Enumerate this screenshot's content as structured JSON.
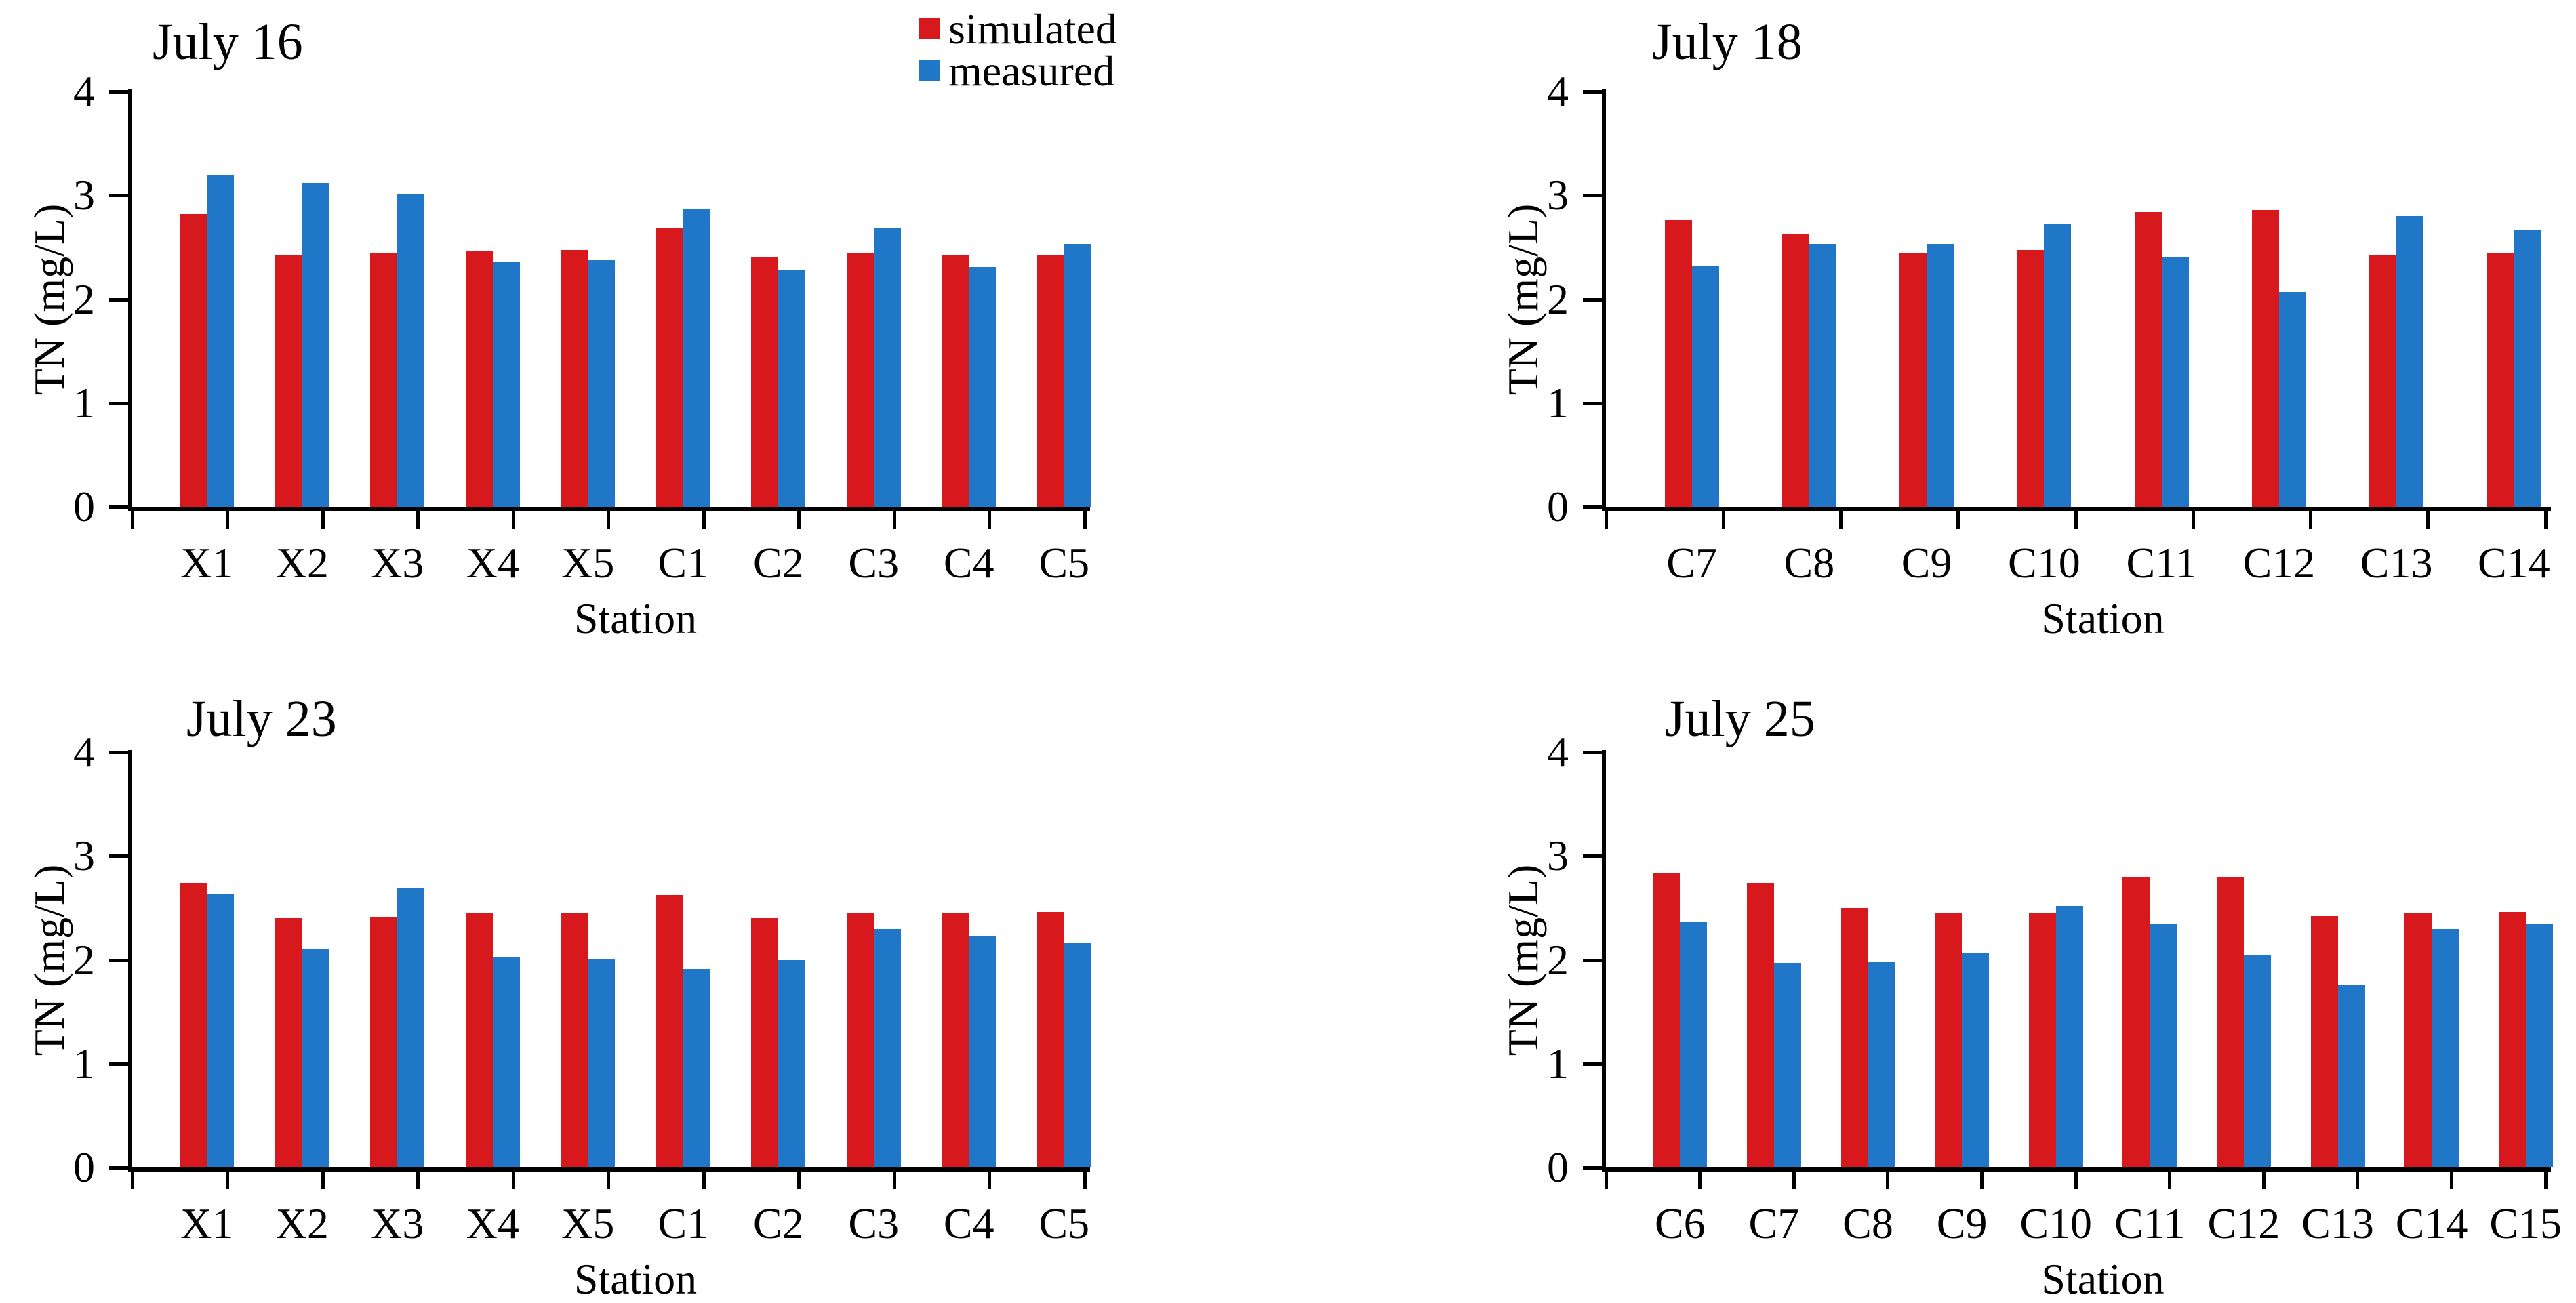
{
  "figure": {
    "y_axis_label": "TN (mg/L)",
    "x_axis_label": "Station",
    "y_ticks": [
      "0",
      "1",
      "2",
      "3",
      "4"
    ]
  },
  "legend": {
    "position": "top-center",
    "entries": [
      {
        "label": "simulated",
        "color": "#d7181d"
      },
      {
        "label": "measured",
        "color": "#2076c7"
      }
    ]
  },
  "chart_data": [
    {
      "type": "bar",
      "title": "July 16",
      "xlabel": "Station",
      "ylabel": "TN (mg/L)",
      "ylim": [
        0,
        4
      ],
      "grid": false,
      "categories": [
        "X1",
        "X2",
        "X3",
        "X4",
        "X5",
        "C1",
        "C2",
        "C3",
        "C4",
        "C5"
      ],
      "series": [
        {
          "name": "simulated",
          "values": [
            2.82,
            2.42,
            2.44,
            2.46,
            2.47,
            2.68,
            2.41,
            2.44,
            2.43,
            2.43
          ]
        },
        {
          "name": "measured",
          "values": [
            3.19,
            3.12,
            3.01,
            2.36,
            2.38,
            2.87,
            2.28,
            2.68,
            2.31,
            2.53
          ]
        }
      ]
    },
    {
      "type": "bar",
      "title": "July 18",
      "xlabel": "Station",
      "ylabel": "TN (mg/L)",
      "ylim": [
        0,
        4
      ],
      "grid": false,
      "categories": [
        "C7",
        "C8",
        "C9",
        "C10",
        "C11",
        "C12",
        "C13",
        "C14"
      ],
      "series": [
        {
          "name": "simulated",
          "values": [
            2.76,
            2.63,
            2.44,
            2.47,
            2.84,
            2.86,
            2.43,
            2.45
          ]
        },
        {
          "name": "measured",
          "values": [
            2.32,
            2.53,
            2.53,
            2.72,
            2.41,
            2.07,
            2.8,
            2.66
          ]
        }
      ]
    },
    {
      "type": "bar",
      "title": "July 23",
      "xlabel": "Station",
      "ylabel": "TN (mg/L)",
      "ylim": [
        0,
        4
      ],
      "grid": false,
      "categories": [
        "X1",
        "X2",
        "X3",
        "X4",
        "X5",
        "C1",
        "C2",
        "C3",
        "C4",
        "C5"
      ],
      "series": [
        {
          "name": "simulated",
          "values": [
            2.74,
            2.4,
            2.41,
            2.45,
            2.45,
            2.62,
            2.4,
            2.45,
            2.45,
            2.46
          ]
        },
        {
          "name": "measured",
          "values": [
            2.63,
            2.11,
            2.69,
            2.03,
            2.01,
            1.91,
            2.0,
            2.3,
            2.23,
            2.16
          ]
        }
      ]
    },
    {
      "type": "bar",
      "title": "July 25",
      "xlabel": "Station",
      "ylabel": "TN (mg/L)",
      "ylim": [
        0,
        4
      ],
      "grid": false,
      "categories": [
        "C6",
        "C7",
        "C8",
        "C9",
        "C10",
        "C11",
        "C12",
        "C13",
        "C14",
        "C15"
      ],
      "series": [
        {
          "name": "simulated",
          "values": [
            2.84,
            2.74,
            2.5,
            2.45,
            2.45,
            2.8,
            2.8,
            2.42,
            2.45,
            2.46
          ]
        },
        {
          "name": "measured",
          "values": [
            2.37,
            1.97,
            1.98,
            2.06,
            2.52,
            2.35,
            2.04,
            1.76,
            2.3,
            2.35
          ]
        }
      ]
    }
  ]
}
